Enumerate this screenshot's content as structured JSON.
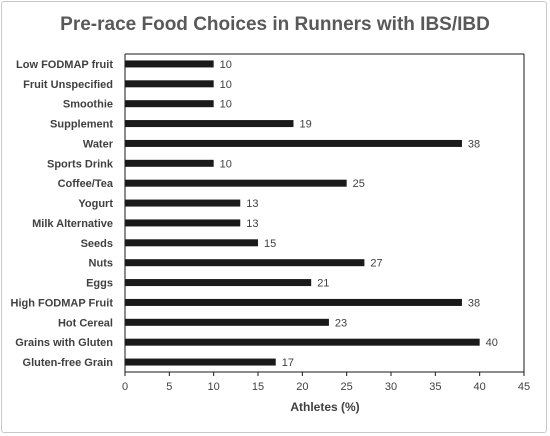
{
  "chart_data": {
    "type": "bar",
    "orientation": "horizontal",
    "title": "Pre-race Food Choices in Runners with IBS/IBD",
    "xlabel": "Athletes (%)",
    "ylabel": "",
    "xlim": [
      0,
      45
    ],
    "xticks": [
      0,
      5,
      10,
      15,
      20,
      25,
      30,
      35,
      40,
      45
    ],
    "grid": false,
    "legend": "none",
    "bar_color": "#1a1a1a",
    "categories": [
      "Low FODMAP fruit",
      "Fruit Unspecified",
      "Smoothie",
      "Supplement",
      "Water",
      "Sports Drink",
      "Coffee/Tea",
      "Yogurt",
      "Milk Alternative",
      "Seeds",
      "Nuts",
      "Eggs",
      "High FODMAP Fruit",
      "Hot Cereal",
      "Grains with Gluten",
      "Gluten-free Grain"
    ],
    "values": [
      10,
      10,
      10,
      19,
      38,
      10,
      25,
      13,
      13,
      15,
      27,
      21,
      38,
      23,
      40,
      17
    ]
  }
}
